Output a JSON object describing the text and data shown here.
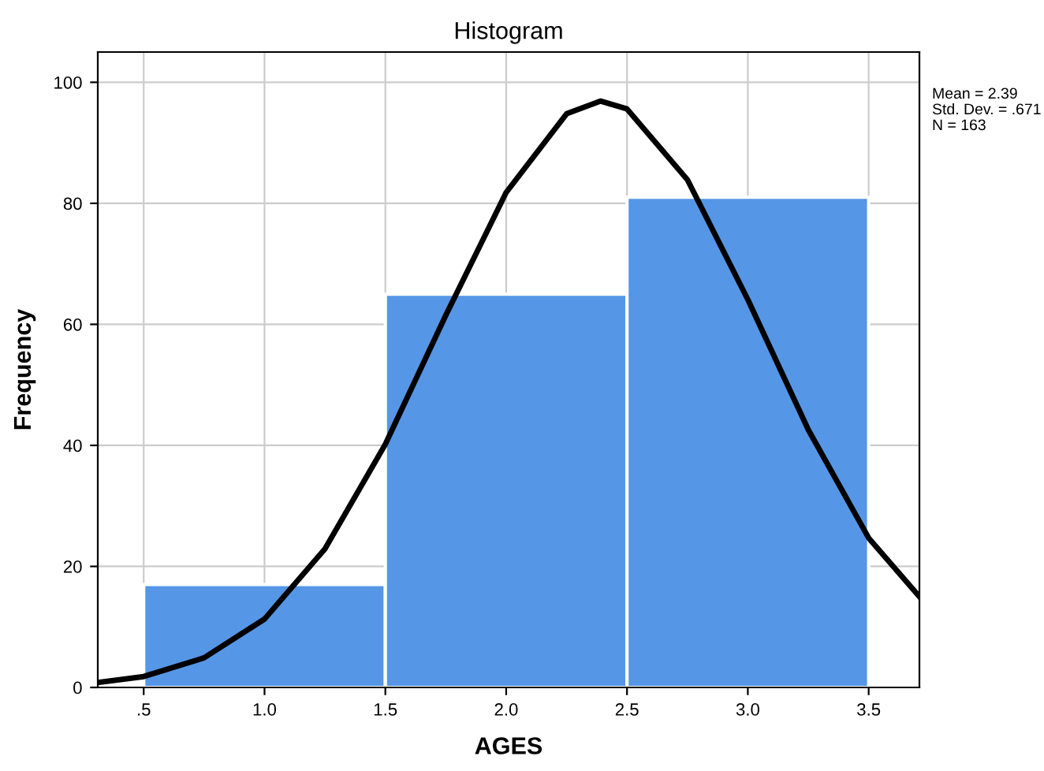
{
  "chart_data": {
    "type": "histogram",
    "title": "Histogram",
    "xlabel": "AGES",
    "ylabel": "Frequency",
    "bins": [
      0.5,
      1.5,
      2.5,
      3.5
    ],
    "series": [
      {
        "color": "#5596e6",
        "values": [
          17,
          65,
          81
        ]
      },
      {
        "type": "line",
        "color": "#000000",
        "x": [
          0.31,
          0.5,
          0.75,
          1.0,
          1.25,
          1.5,
          1.75,
          2.0,
          2.25,
          2.39,
          2.5,
          2.75,
          3.0,
          3.25,
          3.5,
          3.71
        ],
        "values": [
          0.8,
          1.8,
          4.9,
          11.3,
          22.9,
          40.2,
          61.5,
          81.8,
          94.8,
          96.9,
          95.6,
          83.9,
          64.1,
          42.6,
          24.7,
          15
        ]
      }
    ],
    "xlim": [
      0.31,
      3.71
    ],
    "ylim": [
      0,
      105
    ],
    "xticks": [
      {
        "value": 0.5,
        "label": ".5"
      },
      {
        "value": 1.0,
        "label": "1.0"
      },
      {
        "value": 1.5,
        "label": "1.5"
      },
      {
        "value": 2.0,
        "label": "2.0"
      },
      {
        "value": 2.5,
        "label": "2.5"
      },
      {
        "value": 3.0,
        "label": "3.0"
      },
      {
        "value": 3.5,
        "label": "3.5"
      }
    ],
    "yticks": [
      0,
      20,
      40,
      60,
      80,
      100
    ],
    "grid": true,
    "marker": "none",
    "line_style": "solid",
    "annotations": [
      "Mean = 2.39",
      "Std. Dev. = .671",
      "N = 163"
    ]
  }
}
